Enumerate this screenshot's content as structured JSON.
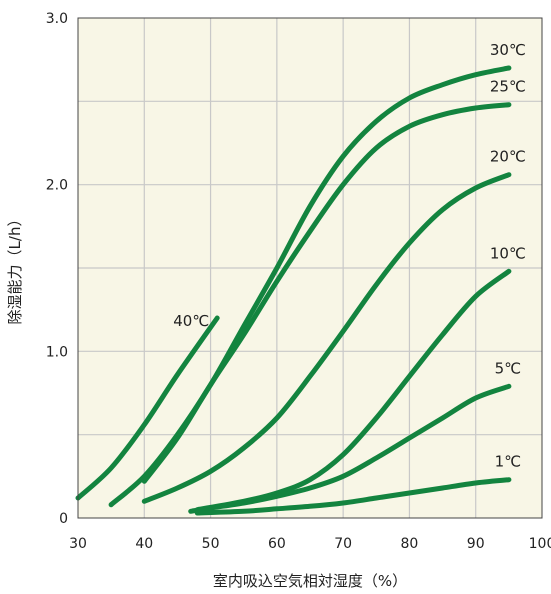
{
  "chart_data": {
    "type": "line",
    "xlabel": "室内吸込空気相対湿度（%）",
    "ylabel": "除湿能力（L/h）",
    "xlim": [
      30,
      100
    ],
    "ylim": [
      0,
      3.0
    ],
    "x_ticks": [
      "30",
      "40",
      "50",
      "60",
      "70",
      "80",
      "90",
      "100"
    ],
    "y_ticks": [
      "0",
      "1.0",
      "2.0",
      "3.0"
    ],
    "grid": true,
    "colors": {
      "plot_bg": "#f8f6e6",
      "grid": "#c8c8c8",
      "line": "#13843f",
      "axis": "#444444"
    },
    "series": [
      {
        "name": "30℃",
        "points": [
          [
            35,
            0.08
          ],
          [
            40,
            0.25
          ],
          [
            45,
            0.5
          ],
          [
            50,
            0.8
          ],
          [
            55,
            1.15
          ],
          [
            60,
            1.5
          ],
          [
            65,
            1.87
          ],
          [
            70,
            2.17
          ],
          [
            75,
            2.38
          ],
          [
            80,
            2.52
          ],
          [
            85,
            2.6
          ],
          [
            90,
            2.66
          ],
          [
            95,
            2.7
          ]
        ]
      },
      {
        "name": "25℃",
        "points": [
          [
            40,
            0.22
          ],
          [
            45,
            0.48
          ],
          [
            50,
            0.8
          ],
          [
            55,
            1.1
          ],
          [
            60,
            1.42
          ],
          [
            65,
            1.72
          ],
          [
            70,
            2.0
          ],
          [
            75,
            2.22
          ],
          [
            80,
            2.35
          ],
          [
            85,
            2.42
          ],
          [
            90,
            2.46
          ],
          [
            95,
            2.48
          ]
        ]
      },
      {
        "name": "20℃",
        "points": [
          [
            40,
            0.1
          ],
          [
            45,
            0.18
          ],
          [
            50,
            0.28
          ],
          [
            55,
            0.42
          ],
          [
            60,
            0.6
          ],
          [
            65,
            0.85
          ],
          [
            70,
            1.12
          ],
          [
            75,
            1.4
          ],
          [
            80,
            1.65
          ],
          [
            85,
            1.85
          ],
          [
            90,
            1.98
          ],
          [
            95,
            2.06
          ]
        ]
      },
      {
        "name": "10℃",
        "points": [
          [
            48,
            0.05
          ],
          [
            55,
            0.1
          ],
          [
            60,
            0.15
          ],
          [
            65,
            0.23
          ],
          [
            70,
            0.38
          ],
          [
            75,
            0.6
          ],
          [
            80,
            0.85
          ],
          [
            85,
            1.1
          ],
          [
            90,
            1.33
          ],
          [
            95,
            1.48
          ]
        ]
      },
      {
        "name": "5℃",
        "points": [
          [
            47,
            0.04
          ],
          [
            50,
            0.06
          ],
          [
            55,
            0.09
          ],
          [
            60,
            0.13
          ],
          [
            65,
            0.18
          ],
          [
            70,
            0.25
          ],
          [
            75,
            0.36
          ],
          [
            80,
            0.48
          ],
          [
            85,
            0.6
          ],
          [
            90,
            0.72
          ],
          [
            95,
            0.79
          ]
        ]
      },
      {
        "name": "1℃",
        "points": [
          [
            48,
            0.03
          ],
          [
            55,
            0.04
          ],
          [
            60,
            0.055
          ],
          [
            65,
            0.07
          ],
          [
            70,
            0.09
          ],
          [
            75,
            0.12
          ],
          [
            80,
            0.15
          ],
          [
            85,
            0.18
          ],
          [
            90,
            0.21
          ],
          [
            95,
            0.23
          ]
        ]
      },
      {
        "name": "40℃",
        "points": [
          [
            30,
            0.12
          ],
          [
            35,
            0.3
          ],
          [
            40,
            0.56
          ],
          [
            45,
            0.86
          ],
          [
            51,
            1.2
          ]
        ]
      }
    ]
  }
}
